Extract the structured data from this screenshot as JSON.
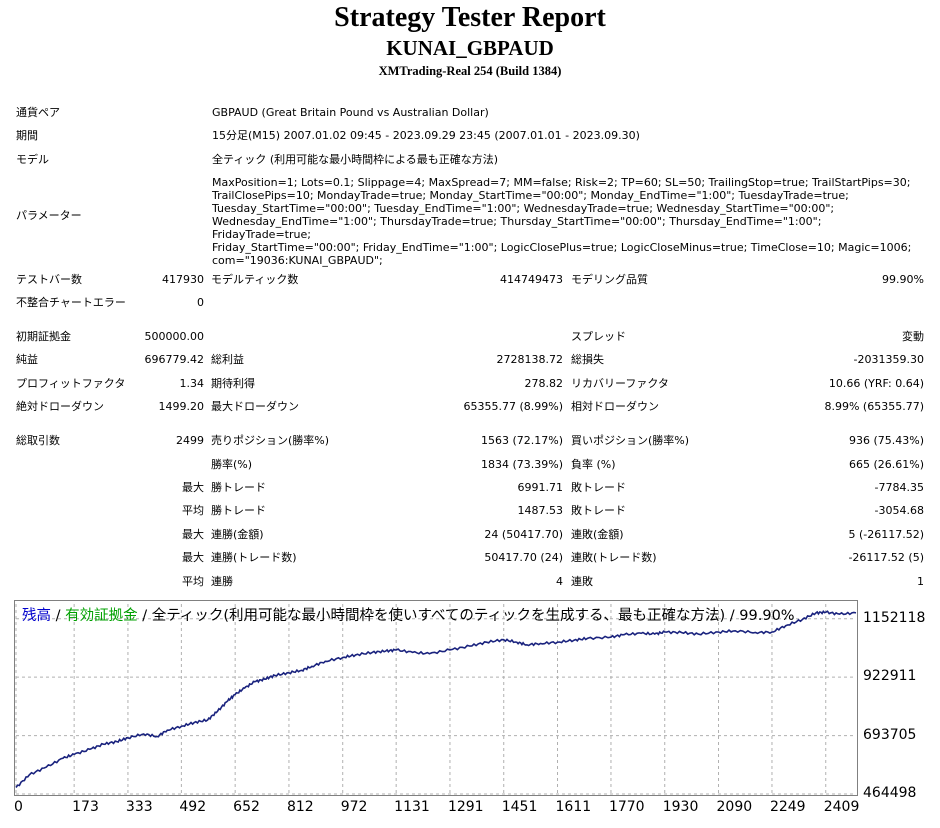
{
  "header": {
    "title": "Strategy Tester Report",
    "ea_name": "KUNAI_GBPAUD",
    "server": "XMTrading-Real 254 (Build 1384)"
  },
  "info": {
    "symbol_label": "通貨ペア",
    "symbol_value": "GBPAUD (Great Britain Pound vs Australian Dollar)",
    "period_label": "期間",
    "period_value": "15分足(M15) 2007.01.02 09:45 - 2023.09.29 23:45 (2007.01.01 - 2023.09.30)",
    "model_label": "モデル",
    "model_value": "全ティック (利用可能な最小時間枠による最も正確な方法)",
    "params_label": "パラメーター",
    "params_value": "MaxPosition=1; Lots=0.1; Slippage=4; MaxSpread=7; MM=false; Risk=2; TP=60; SL=50; TrailingStop=true; TrailStartPips=30;\nTrailClosePips=10; MondayTrade=true; Monday_StartTime=\"00:00\"; Monday_EndTime=\"1:00\"; TuesdayTrade=true;\nTuesday_StartTime=\"00:00\"; Tuesday_EndTime=\"1:00\"; WednesdayTrade=true; Wednesday_StartTime=\"00:00\";\nWednesday_EndTime=\"1:00\"; ThursdayTrade=true; Thursday_StartTime=\"00:00\"; Thursday_EndTime=\"1:00\"; FridayTrade=true;\nFriday_StartTime=\"00:00\"; Friday_EndTime=\"1:00\"; LogicClosePlus=true; LogicCloseMinus=true; TimeClose=10; Magic=1006;\ncom=\"19036:KUNAI_GBPAUD\";"
  },
  "stats": {
    "bars_label": "テストバー数",
    "bars_value": "417930",
    "ticks_label": "モデルティック数",
    "ticks_value": "414749473",
    "quality_label": "モデリング品質",
    "quality_value": "99.90%",
    "errors_label": "不整合チャートエラー",
    "errors_value": "0",
    "deposit_label": "初期証拠金",
    "deposit_value": "500000.00",
    "spread_label": "スプレッド",
    "spread_value": "変動",
    "net_label": "純益",
    "net_value": "696779.42",
    "gross_profit_label": "総利益",
    "gross_profit_value": "2728138.72",
    "gross_loss_label": "総損失",
    "gross_loss_value": "-2031359.30",
    "pf_label": "プロフィットファクタ",
    "pf_value": "1.34",
    "expected_label": "期待利得",
    "expected_value": "278.82",
    "recovery_label": "リカバリーファクタ",
    "recovery_value": "10.66 (YRF: 0.64)",
    "abs_dd_label": "絶対ドローダウン",
    "abs_dd_value": "1499.20",
    "max_dd_label": "最大ドローダウン",
    "max_dd_value": "65355.77 (8.99%)",
    "rel_dd_label": "相対ドローダウン",
    "rel_dd_value": "8.99% (65355.77)",
    "trades_label": "総取引数",
    "trades_value": "2499",
    "short_label": "売りポジション(勝率%)",
    "short_value": "1563 (72.17%)",
    "long_label": "買いポジション(勝率%)",
    "long_value": "936 (75.43%)",
    "win_rate_label": "勝率(%)",
    "win_rate_value": "1834 (73.39%)",
    "loss_rate_label": "負率 (%)",
    "loss_rate_value": "665 (26.61%)",
    "max_label": "最大",
    "avg_label": "平均",
    "max_win_label": "勝トレード",
    "max_win_value": "6991.71",
    "max_loss_label": "敗トレード",
    "max_loss_value": "-7784.35",
    "avg_win_label": "勝トレード",
    "avg_win_value": "1487.53",
    "avg_loss_label": "敗トレード",
    "avg_loss_value": "-3054.68",
    "cons_wins_amt_label": "連勝(金額)",
    "cons_wins_amt_value": "24 (50417.70)",
    "cons_loss_amt_label": "連敗(金額)",
    "cons_loss_amt_value": "5 (-26117.52)",
    "cons_wins_cnt_label": "連勝(トレード数)",
    "cons_wins_cnt_value": "50417.70 (24)",
    "cons_loss_cnt_label": "連敗(トレード数)",
    "cons_loss_cnt_value": "-26117.52 (5)",
    "avg_cons_wins_label": "連勝",
    "avg_cons_wins_value": "4",
    "avg_cons_loss_label": "連敗",
    "avg_cons_loss_value": "1"
  },
  "chart_title": {
    "balance": "残高",
    "sep1": " / ",
    "equity": "有効証拠金",
    "rest": " / 全ティック(利用可能な最小時間枠を使いすべてのティックを生成する、最も正確な方法) / 99.90%"
  },
  "colors": {
    "balance_line": "#1a237e",
    "title_blue": "#0000cc",
    "title_green": "#00a000",
    "grid": "#b0b0b0"
  },
  "chart_data": {
    "type": "line",
    "title": "",
    "xlabel": "",
    "ylabel": "",
    "x_ticks": [
      "0",
      "173",
      "333",
      "492",
      "652",
      "812",
      "972",
      "1131",
      "1291",
      "1451",
      "1611",
      "1770",
      "1930",
      "2090",
      "2249",
      "2409"
    ],
    "y_ticks": [
      "1152118",
      "922911",
      "693705",
      "464498"
    ],
    "ylim": [
      464498,
      1210000
    ],
    "xlim": [
      0,
      2499
    ],
    "grid": true,
    "series": [
      {
        "values": [
          [
            0,
            490000
          ],
          [
            40,
            540000
          ],
          [
            90,
            570000
          ],
          [
            140,
            605000
          ],
          [
            173,
            620000
          ],
          [
            220,
            640000
          ],
          [
            260,
            660000
          ],
          [
            300,
            670000
          ],
          [
            333,
            685000
          ],
          [
            380,
            700000
          ],
          [
            420,
            690000
          ],
          [
            450,
            715000
          ],
          [
            492,
            730000
          ],
          [
            530,
            745000
          ],
          [
            570,
            755000
          ],
          [
            600,
            790000
          ],
          [
            630,
            830000
          ],
          [
            652,
            855000
          ],
          [
            680,
            880000
          ],
          [
            710,
            905000
          ],
          [
            740,
            915000
          ],
          [
            770,
            930000
          ],
          [
            812,
            940000
          ],
          [
            850,
            950000
          ],
          [
            880,
            965000
          ],
          [
            920,
            985000
          ],
          [
            972,
            1000000
          ],
          [
            1010,
            1010000
          ],
          [
            1060,
            1020000
          ],
          [
            1100,
            1025000
          ],
          [
            1131,
            1030000
          ],
          [
            1180,
            1020000
          ],
          [
            1230,
            1015000
          ],
          [
            1291,
            1030000
          ],
          [
            1350,
            1045000
          ],
          [
            1400,
            1060000
          ],
          [
            1451,
            1070000
          ],
          [
            1490,
            1060000
          ],
          [
            1520,
            1050000
          ],
          [
            1560,
            1055000
          ],
          [
            1611,
            1060000
          ],
          [
            1660,
            1068000
          ],
          [
            1700,
            1075000
          ],
          [
            1770,
            1080000
          ],
          [
            1810,
            1090000
          ],
          [
            1860,
            1095000
          ],
          [
            1900,
            1092000
          ],
          [
            1930,
            1100000
          ],
          [
            1980,
            1098000
          ],
          [
            2030,
            1092000
          ],
          [
            2090,
            1100000
          ],
          [
            2140,
            1105000
          ],
          [
            2200,
            1098000
          ],
          [
            2249,
            1100000
          ],
          [
            2290,
            1125000
          ],
          [
            2340,
            1150000
          ],
          [
            2380,
            1175000
          ],
          [
            2409,
            1178000
          ],
          [
            2450,
            1170000
          ],
          [
            2499,
            1175000
          ]
        ]
      }
    ]
  }
}
